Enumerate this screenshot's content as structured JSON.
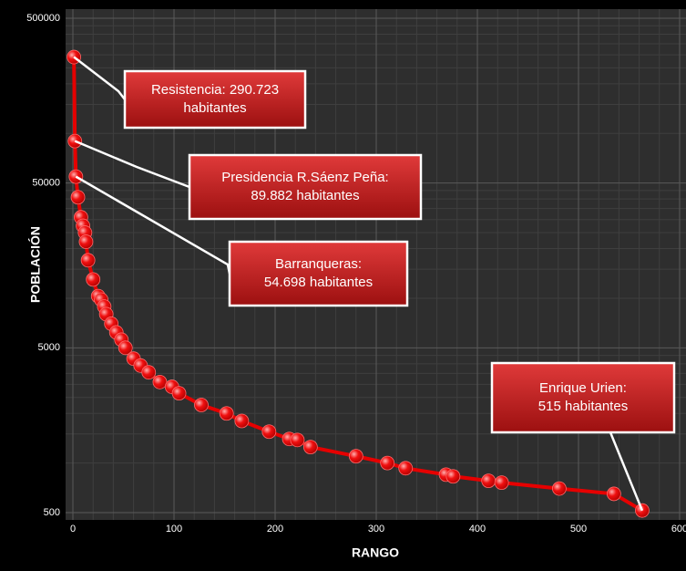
{
  "chart_data": {
    "type": "line",
    "x_label": "RANGO",
    "y_label": "POBLACIÓN",
    "x": [
      1,
      2,
      3,
      5,
      8,
      10,
      12,
      13,
      15,
      20,
      25,
      28,
      31,
      33,
      38,
      43,
      48,
      52,
      60,
      67,
      75,
      86,
      98,
      105,
      127,
      152,
      167,
      194,
      214,
      222,
      235,
      280,
      311,
      329,
      369,
      376,
      411,
      424,
      481,
      535,
      563
    ],
    "values": [
      290723,
      89882,
      54698,
      41000,
      31000,
      27500,
      25000,
      22000,
      17000,
      13000,
      10300,
      9800,
      8900,
      8000,
      7000,
      6200,
      5600,
      5000,
      4300,
      3900,
      3550,
      3100,
      2900,
      2650,
      2250,
      2000,
      1800,
      1550,
      1400,
      1380,
      1250,
      1100,
      1000,
      930,
      850,
      830,
      780,
      760,
      700,
      650,
      515
    ],
    "color": "#e60000",
    "xlim": [
      0,
      600
    ],
    "xticks": [
      0,
      100,
      200,
      300,
      400,
      500,
      600
    ],
    "ylim": [
      500,
      500000
    ],
    "yticks": [
      500,
      5000,
      50000,
      500000
    ],
    "y_log": true,
    "grid": true,
    "annotations": [
      {
        "lines": [
          "Resistencia: 290.723",
          "habitantes"
        ]
      },
      {
        "lines": [
          "Presidencia R.Sáenz Peña:",
          "89.882 habitantes"
        ]
      },
      {
        "lines": [
          "Barranqueras:",
          "54.698 habitantes"
        ]
      },
      {
        "lines": [
          "Enrique Urien:",
          "515 habitantes"
        ]
      }
    ]
  }
}
